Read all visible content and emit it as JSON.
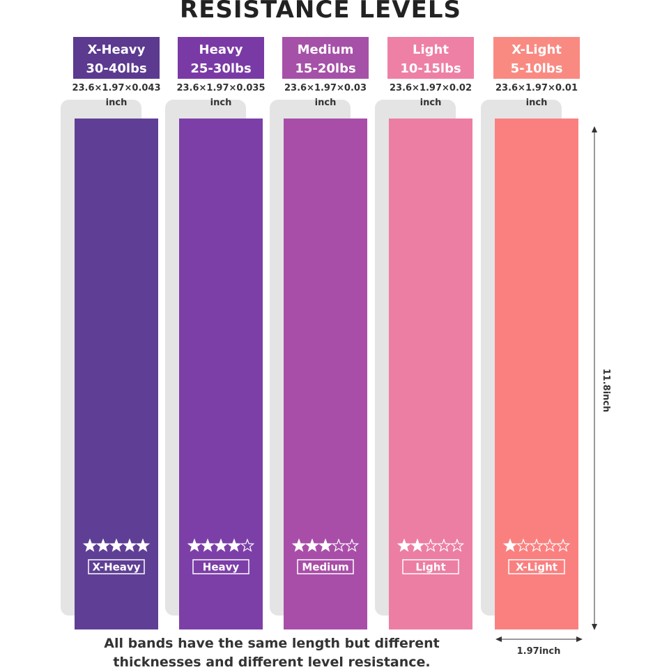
{
  "title": "RESISTANCE LEVELS",
  "bands": [
    {
      "name": "X-Heavy",
      "weight": "30-40lbs",
      "size": "23.6×1.97×0.043 inch",
      "stars": 5,
      "color": "#5f3f95",
      "label_color": "#5b3a8f"
    },
    {
      "name": "Heavy",
      "weight": "25-30lbs",
      "size": "23.6×1.97×0.035 inch",
      "stars": 4,
      "color": "#7c3fa8",
      "label_color": "#7a3aa5"
    },
    {
      "name": "Medium",
      "weight": "15-20lbs",
      "size": "23.6×1.97×0.03 inch",
      "stars": 3,
      "color": "#a84ea8",
      "label_color": "#a651a8"
    },
    {
      "name": "Light",
      "weight": "10-15lbs",
      "size": "23.6×1.97×0.02 inch",
      "stars": 2,
      "color": "#ec7ea3",
      "label_color": "#ee80a5"
    },
    {
      "name": "X-Light",
      "weight": "5-10lbs",
      "size": "23.6×1.97×0.01 inch",
      "stars": 1,
      "color": "#fa8080",
      "label_color": "#f98a82"
    }
  ],
  "max_stars": 5,
  "length_label": "11.8inch",
  "width_label": "1.97inch",
  "footer": "All bands have the same length but different thicknesses and different level resistance."
}
